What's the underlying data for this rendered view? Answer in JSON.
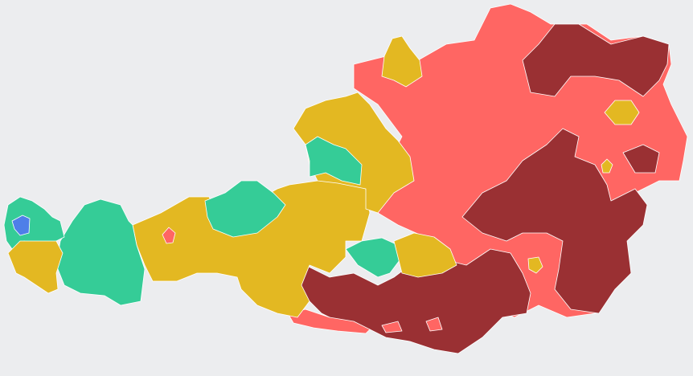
{
  "regions": [
    {
      "color": "#ff6663"
    },
    {
      "color": "#9a3033"
    },
    {
      "color": "#9a3033"
    },
    {
      "color": "#9a3033"
    },
    {
      "color": "#9a3033"
    },
    {
      "color": "#ff6663"
    },
    {
      "color": "#ff6663"
    },
    {
      "color": "#ff6663"
    },
    {
      "color": "#e3b822"
    },
    {
      "color": "#35cc97"
    },
    {
      "color": "#35cc97"
    },
    {
      "color": "#35cc97"
    },
    {
      "color": "#4e7fe8"
    },
    {
      "color": "#e3b822"
    },
    {
      "color": "#ff6663"
    },
    {
      "color": "#e3b822"
    },
    {
      "color": "#e3b822"
    },
    {
      "color": "#35cc97"
    },
    {
      "color": "#35cc97"
    },
    {
      "color": "#e3b822"
    },
    {
      "color": "#e3b822"
    },
    {
      "color": "#e3b822"
    },
    {
      "color": "#e3b822"
    }
  ]
}
